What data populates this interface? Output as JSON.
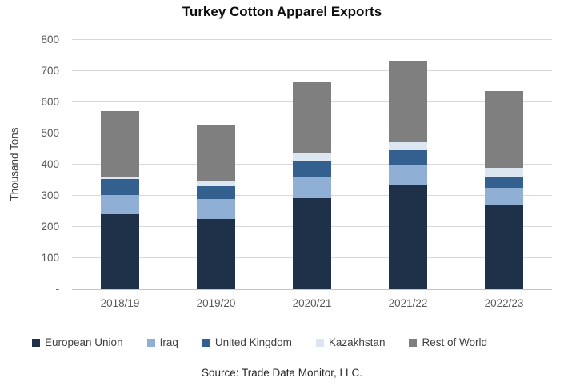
{
  "title": "Turkey Cotton Apparel Exports",
  "y_axis_title": "Thousand Tons",
  "source": "Source: Trade Data Monitor, LLC.",
  "chart_data": {
    "type": "bar",
    "stacked": true,
    "title": "Turkey Cotton Apparel Exports",
    "ylabel": "Thousand Tons",
    "xlabel": "",
    "ylim": [
      0,
      800
    ],
    "ytick_interval": 100,
    "ytick_labels": [
      "-",
      "100",
      "200",
      "300",
      "400",
      "500",
      "600",
      "700",
      "800"
    ],
    "grid": true,
    "legend_position": "bottom",
    "categories": [
      "2018/19",
      "2019/20",
      "2020/21",
      "2021/22",
      "2022/23"
    ],
    "series": [
      {
        "name": "European Union",
        "color": "#1F3049",
        "values": [
          240,
          225,
          292,
          335,
          270
        ]
      },
      {
        "name": "Iraq",
        "color": "#8FAFD4",
        "values": [
          62,
          64,
          66,
          62,
          56
        ]
      },
      {
        "name": "United Kingdom",
        "color": "#33608F",
        "values": [
          52,
          42,
          56,
          50,
          34
        ]
      },
      {
        "name": "Kazakhstan",
        "color": "#DCE6F1",
        "values": [
          8,
          14,
          24,
          26,
          30
        ]
      },
      {
        "name": "Rest of World",
        "color": "#7F7F7F",
        "values": [
          210,
          182,
          229,
          260,
          247
        ]
      }
    ],
    "totals": [
      572,
      527,
      667,
      733,
      637
    ]
  }
}
